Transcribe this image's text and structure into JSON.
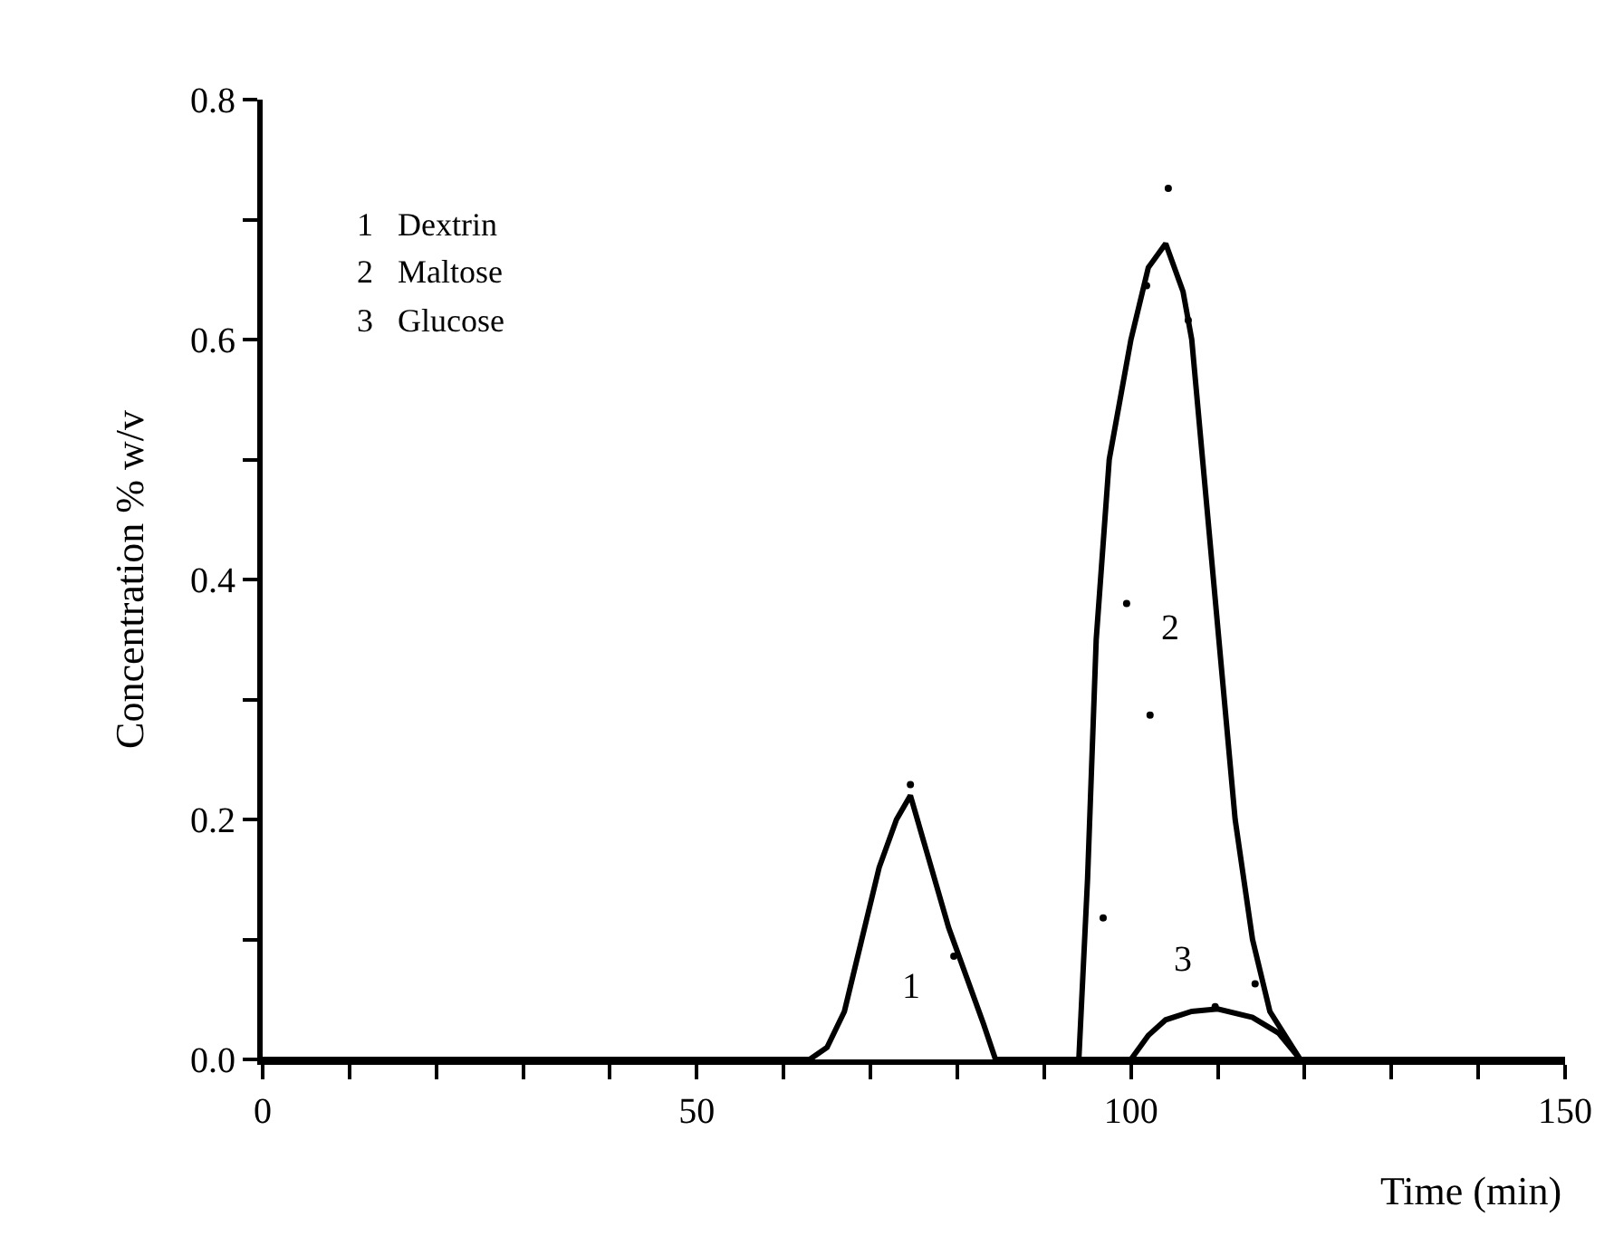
{
  "chart_data": {
    "type": "line",
    "xlabel": "Time (min)",
    "ylabel": "Concentration % w/v",
    "xlim": [
      0,
      150
    ],
    "ylim": [
      0,
      0.8
    ],
    "xticks": [
      0,
      {
        "value": 10,
        "label": null
      },
      {
        "value": 20,
        "label": null
      },
      {
        "value": 30,
        "label": null
      },
      {
        "value": 40,
        "label": null
      },
      50,
      {
        "value": 60,
        "label": null
      },
      {
        "value": 70,
        "label": null
      },
      {
        "value": 80,
        "label": null
      },
      {
        "value": 90,
        "label": null
      },
      100,
      {
        "value": 110,
        "label": null
      },
      {
        "value": 120,
        "label": null
      },
      {
        "value": 130,
        "label": null
      },
      {
        "value": 140,
        "label": null
      },
      150
    ],
    "yticks": [
      {
        "value": 0,
        "label": "0.0"
      },
      {
        "value": 0.1,
        "label": null
      },
      0.2,
      {
        "value": 0.3,
        "label": null
      },
      0.4,
      {
        "value": 0.5,
        "label": null
      },
      0.6,
      {
        "value": 0.7,
        "label": null
      },
      0.8
    ],
    "line_style": "solid",
    "marker": "none",
    "series": [
      {
        "color": "#000000",
        "x": [
          0,
          63,
          65,
          67,
          69,
          71,
          73,
          74.6,
          77,
          79,
          81,
          83,
          84.4,
          150
        ],
        "values": [
          0,
          0,
          0.01,
          0.04,
          0.1,
          0.16,
          0.2,
          0.22,
          0.16,
          0.11,
          0.07,
          0.03,
          0,
          0
        ]
      },
      {
        "color": "#000000",
        "x": [
          94,
          95,
          96,
          97.5,
          100,
          102,
          104,
          106,
          107,
          109.5,
          112,
          114,
          116,
          119.5
        ],
        "values": [
          0,
          0.15,
          0.35,
          0.5,
          0.6,
          0.66,
          0.68,
          0.64,
          0.6,
          0.4,
          0.2,
          0.1,
          0.04,
          0
        ]
      },
      {
        "color": "#000000",
        "x": [
          100,
          102,
          104,
          107,
          110,
          114,
          117,
          119.5
        ],
        "values": [
          0,
          0.02,
          0.033,
          0.04,
          0.042,
          0.035,
          0.022,
          0
        ]
      },
      {
        "type": "scatter",
        "color": "#000000",
        "marker": "circle",
        "x": [
          74.6,
          79.6,
          96.8,
          99.5,
          101.8,
          102.2,
          104.3,
          106.6,
          109.7,
          114.3
        ],
        "values": [
          0.229,
          0.086,
          0.118,
          0.38,
          0.645,
          0.287,
          0.726,
          0.616,
          0.044,
          0.063
        ]
      }
    ],
    "annotations": [
      "1   Dextrin",
      "2   Maltose",
      "3   Glucose",
      "1",
      "2",
      "3"
    ]
  }
}
